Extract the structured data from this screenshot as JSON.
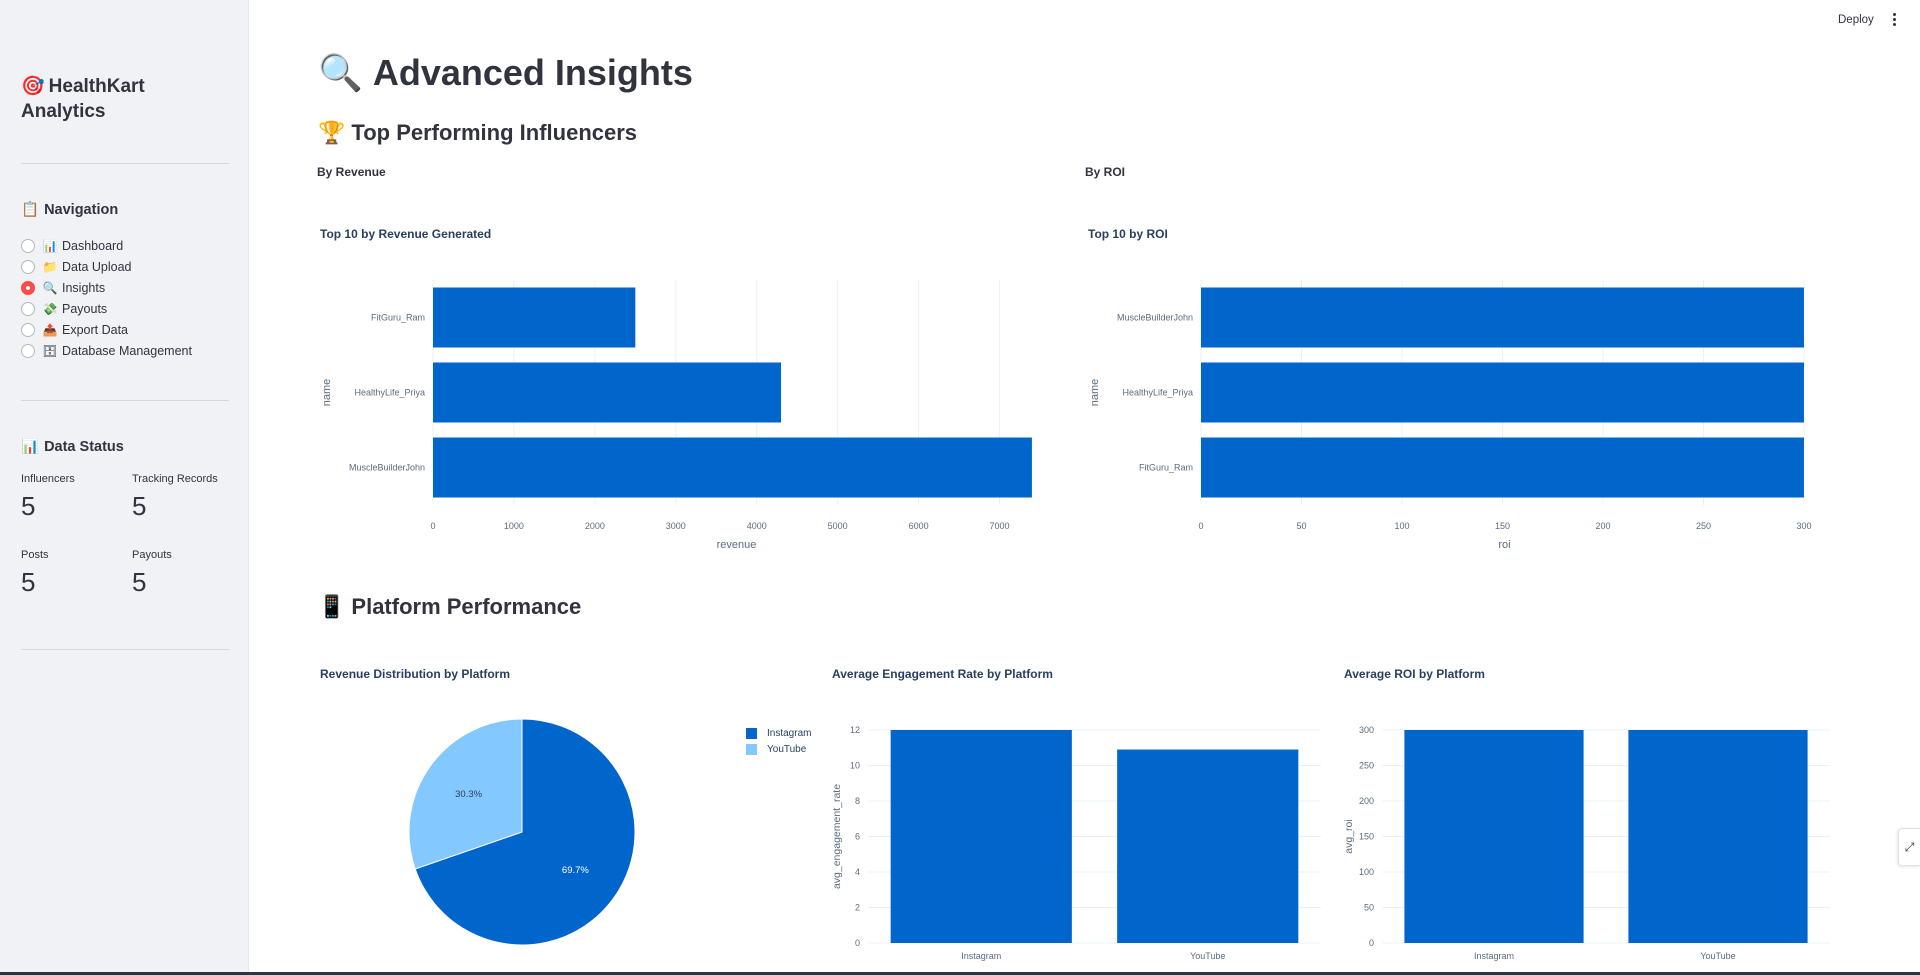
{
  "sidebar": {
    "title_emoji": "🎯",
    "title": "HealthKart Analytics",
    "navigation": {
      "emoji": "📋",
      "heading": "Navigation",
      "items": [
        {
          "emoji": "📊",
          "label": "Dashboard",
          "selected": false
        },
        {
          "emoji": "📁",
          "label": "Data Upload",
          "selected": false
        },
        {
          "emoji": "🔍",
          "label": "Insights",
          "selected": true
        },
        {
          "emoji": "💸",
          "label": "Payouts",
          "selected": false
        },
        {
          "emoji": "📤",
          "label": "Export Data",
          "selected": false
        },
        {
          "emoji": "🗄",
          "label": "Database Management",
          "selected": false
        }
      ]
    },
    "status": {
      "emoji": "📊",
      "heading": "Data Status",
      "metrics": [
        {
          "label": "Influencers",
          "value": "5"
        },
        {
          "label": "Tracking Records",
          "value": "5"
        },
        {
          "label": "Posts",
          "value": "5"
        },
        {
          "label": "Payouts",
          "value": "5"
        }
      ]
    }
  },
  "header": {
    "deploy_label": "Deploy"
  },
  "main": {
    "title_emoji": "🔍",
    "title": "Advanced Insights",
    "top_section": {
      "emoji": "🏆",
      "heading": "Top Performing Influencers",
      "left_sub": "By Revenue",
      "right_sub": "By ROI"
    },
    "platform_section": {
      "emoji": "📱",
      "heading": "Platform Performance"
    }
  },
  "colors": {
    "bar": "#0066cc",
    "pie_secondary": "#83c9ff",
    "radio_selected": "#ff4b4b",
    "sidebar_bg": "#f0f2f6"
  },
  "chart_data": [
    {
      "type": "bar",
      "orientation": "horizontal",
      "title": "Top 10 by Revenue Generated",
      "xlabel": "revenue",
      "ylabel": "name",
      "categories": [
        "FitGuru_Ram",
        "HealthyLife_Priya",
        "MuscleBuilderJohn"
      ],
      "values": [
        2500,
        4300,
        7400
      ],
      "xlim": [
        0,
        7500
      ],
      "xticks": [
        "0",
        "1000",
        "2000",
        "3000",
        "4000",
        "5000",
        "6000",
        "7000"
      ]
    },
    {
      "type": "bar",
      "orientation": "horizontal",
      "title": "Top 10 by ROI",
      "xlabel": "roi",
      "ylabel": "name",
      "categories": [
        "MuscleBuilderJohn",
        "HealthyLife_Priya",
        "FitGuru_Ram"
      ],
      "values": [
        300,
        300,
        300
      ],
      "xlim": [
        0,
        302
      ],
      "xticks": [
        "0",
        "50",
        "100",
        "150",
        "200",
        "250",
        "300"
      ]
    },
    {
      "type": "pie",
      "title": "Revenue Distribution by Platform",
      "labels": [
        "Instagram",
        "YouTube"
      ],
      "values": [
        69.7,
        30.3
      ],
      "value_labels": [
        "69.7%",
        "30.3%"
      ],
      "legend": "top-right"
    },
    {
      "type": "bar",
      "title": "Average Engagement Rate by Platform",
      "xlabel": "",
      "ylabel": "avg_engagement_rate",
      "categories": [
        "Instagram",
        "YouTube"
      ],
      "values": [
        12,
        10.9
      ],
      "ylim": [
        0,
        12
      ],
      "yticks": [
        "0",
        "2",
        "4",
        "6",
        "8",
        "10",
        "12"
      ]
    },
    {
      "type": "bar",
      "title": "Average ROI by Platform",
      "xlabel": "",
      "ylabel": "avg_roi",
      "categories": [
        "Instagram",
        "YouTube"
      ],
      "values": [
        300,
        300
      ],
      "ylim": [
        0,
        300
      ],
      "yticks": [
        "0",
        "50",
        "100",
        "150",
        "200",
        "250",
        "300"
      ]
    }
  ]
}
